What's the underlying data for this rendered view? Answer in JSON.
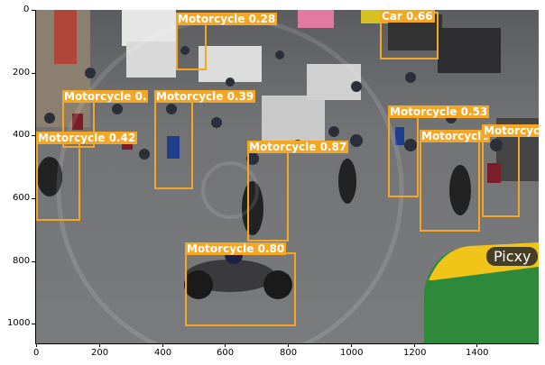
{
  "axes": {
    "x_ticks": [
      "0",
      "200",
      "400",
      "600",
      "800",
      "1000",
      "1200",
      "1400"
    ],
    "y_ticks": [
      "0",
      "200",
      "400",
      "600",
      "800",
      "1000"
    ]
  },
  "detections": [
    {
      "label": "Motorcycle 0.28",
      "class": "Motorcycle",
      "score": 0.28
    },
    {
      "label": "Car 0.66",
      "class": "Car",
      "score": 0.66
    },
    {
      "label": "Motorcycle 0.",
      "class": "Motorcycle",
      "score": null
    },
    {
      "label": "Motorcycle 0.39",
      "class": "Motorcycle",
      "score": 0.39
    },
    {
      "label": "Motorcycle 0.53",
      "class": "Motorcycle",
      "score": 0.53
    },
    {
      "label": "Motorcycle 0.42",
      "class": "Motorcycle",
      "score": 0.42
    },
    {
      "label": "Motorcycle 0.87",
      "class": "Motorcycle",
      "score": 0.87
    },
    {
      "label": "Motorcycle",
      "class": "Motorcycle",
      "score": null
    },
    {
      "label": "Motorcyc",
      "class": "Motorcycle",
      "score": null
    },
    {
      "label": "Motorcycle 0.80",
      "class": "Motorcycle",
      "score": 0.8
    }
  ],
  "watermark": "Picxy",
  "colors": {
    "box": "#f5a623",
    "label_text": "#ffffff"
  }
}
